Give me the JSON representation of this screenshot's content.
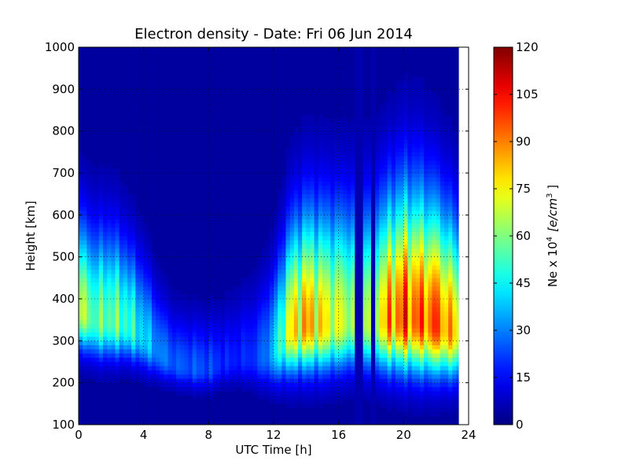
{
  "chart_data": {
    "type": "heatmap",
    "title": "Electron density - Date: Fri 06 Jun 2014",
    "xlabel": "UTC Time [h]",
    "ylabel": "Height [km]",
    "xlim": [
      0,
      24
    ],
    "ylim": [
      100,
      1000
    ],
    "x_ticks": [
      "0",
      "4",
      "8",
      "12",
      "16",
      "20",
      "24"
    ],
    "y_ticks": [
      "100",
      "200",
      "300",
      "400",
      "500",
      "600",
      "700",
      "800",
      "900",
      "1000"
    ],
    "data_end_hour": 23.4,
    "grid": true,
    "colormap": "jet",
    "colorbar": {
      "label_prefix": "Ne x 10",
      "label_exponent": "4",
      "label_units": "[e/cm",
      "label_units_exponent": "3",
      "label_suffix": " ]",
      "range": [
        0,
        120
      ],
      "ticks": [
        "0",
        "15",
        "30",
        "45",
        "60",
        "75",
        "90",
        "105",
        "120"
      ]
    },
    "profiles": [
      {
        "hour": 0,
        "peak_km": 370,
        "peak_density": 78,
        "thickness_km": 55
      },
      {
        "hour": 1,
        "peak_km": 345,
        "peak_density": 62,
        "thickness_km": 55
      },
      {
        "hour": 2,
        "peak_km": 345,
        "peak_density": 66,
        "thickness_km": 55
      },
      {
        "hour": 3,
        "peak_km": 335,
        "peak_density": 58,
        "thickness_km": 50
      },
      {
        "hour": 4,
        "peak_km": 305,
        "peak_density": 45,
        "thickness_km": 45
      },
      {
        "hour": 5,
        "peak_km": 265,
        "peak_density": 32,
        "thickness_km": 35
      },
      {
        "hour": 6,
        "peak_km": 240,
        "peak_density": 26,
        "thickness_km": 30
      },
      {
        "hour": 7,
        "peak_km": 232,
        "peak_density": 26,
        "thickness_km": 30
      },
      {
        "hour": 8,
        "peak_km": 230,
        "peak_density": 24,
        "thickness_km": 30
      },
      {
        "hour": 9,
        "peak_km": 245,
        "peak_density": 18,
        "thickness_km": 30
      },
      {
        "hour": 10,
        "peak_km": 255,
        "peak_density": 18,
        "thickness_km": 35
      },
      {
        "hour": 11,
        "peak_km": 255,
        "peak_density": 22,
        "thickness_km": 40
      },
      {
        "hour": 12,
        "peak_km": 270,
        "peak_density": 40,
        "thickness_km": 50
      },
      {
        "hour": 13,
        "peak_km": 320,
        "peak_density": 85,
        "thickness_km": 65
      },
      {
        "hour": 14,
        "peak_km": 335,
        "peak_density": 98,
        "thickness_km": 70
      },
      {
        "hour": 15,
        "peak_km": 335,
        "peak_density": 88,
        "thickness_km": 70
      },
      {
        "hour": 16,
        "peak_km": 340,
        "peak_density": 80,
        "thickness_km": 70
      },
      {
        "hour": 17,
        "peak_km": 345,
        "peak_density": 75,
        "thickness_km": 70
      },
      {
        "hour": 18,
        "peak_km": 340,
        "peak_density": 80,
        "thickness_km": 70
      },
      {
        "hour": 19,
        "peak_km": 345,
        "peak_density": 98,
        "thickness_km": 75
      },
      {
        "hour": 20,
        "peak_km": 350,
        "peak_density": 112,
        "thickness_km": 80
      },
      {
        "hour": 21,
        "peak_km": 345,
        "peak_density": 108,
        "thickness_km": 80
      },
      {
        "hour": 22,
        "peak_km": 335,
        "peak_density": 112,
        "thickness_km": 75
      },
      {
        "hour": 23,
        "peak_km": 320,
        "peak_density": 95,
        "thickness_km": 70
      },
      {
        "hour": 23.4,
        "peak_km": 315,
        "peak_density": 85,
        "thickness_km": 65
      }
    ],
    "gaps_hours": [
      [
        17.1,
        17.5
      ],
      [
        17.9,
        18.2
      ]
    ]
  }
}
